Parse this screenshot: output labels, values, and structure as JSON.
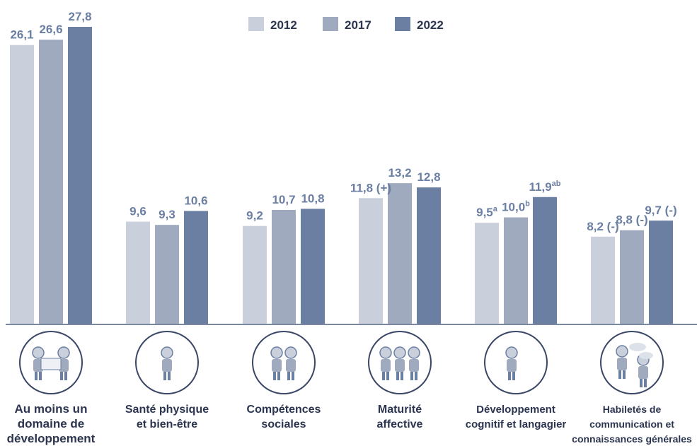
{
  "chart_data": {
    "type": "bar",
    "categories": [
      "Au moins un domaine de développement",
      "Santé physique et bien-être",
      "Compétences sociales",
      "Maturité affective",
      "Développement cognitif et langagier",
      "Habiletés de communication et connaissances générales"
    ],
    "category_label_lines": [
      [
        "Au moins un",
        "domaine de",
        "développement"
      ],
      [
        "Santé physique",
        "et bien-être"
      ],
      [
        "Compétences",
        "sociales"
      ],
      [
        "Maturité",
        "affective"
      ],
      [
        "Développement",
        "cognitif et langagier"
      ],
      [
        "Habiletés de",
        "communication et",
        "connaissances générales"
      ]
    ],
    "series": [
      {
        "name": "2012",
        "color": "#c9cfdb",
        "values": [
          26.1,
          9.6,
          9.2,
          11.8,
          9.5,
          8.2
        ],
        "labels": [
          "26,1",
          "9,6",
          "9,2",
          "11,8 (+)",
          "9,5",
          "8,2 (-)"
        ],
        "superscripts": [
          "",
          "",
          "",
          "",
          "a",
          ""
        ]
      },
      {
        "name": "2017",
        "color": "#a0aabe",
        "values": [
          26.6,
          9.3,
          10.7,
          13.2,
          10.0,
          8.8
        ],
        "labels": [
          "26,6",
          "9,3",
          "10,7",
          "13,2",
          "10,0",
          "8,8 (-)"
        ],
        "superscripts": [
          "",
          "",
          "",
          "",
          "b",
          ""
        ]
      },
      {
        "name": "2022",
        "color": "#6b7fa3",
        "values": [
          27.8,
          10.6,
          10.8,
          12.8,
          11.9,
          9.7
        ],
        "labels": [
          "27,8",
          "10,6",
          "10,8",
          "12,8",
          "11,9",
          "9,7 (-)"
        ],
        "superscripts": [
          "",
          "",
          "",
          "",
          "ab",
          ""
        ]
      }
    ],
    "icons": [
      "at-least-one-domain-icon",
      "physical-health-icon",
      "social-skills-icon",
      "emotional-maturity-icon",
      "cognitive-development-icon",
      "communication-icon"
    ],
    "value_label_color": "#6b7fa3",
    "legend_position": "top-center",
    "grid": false,
    "ylim": [
      0,
      28
    ]
  }
}
